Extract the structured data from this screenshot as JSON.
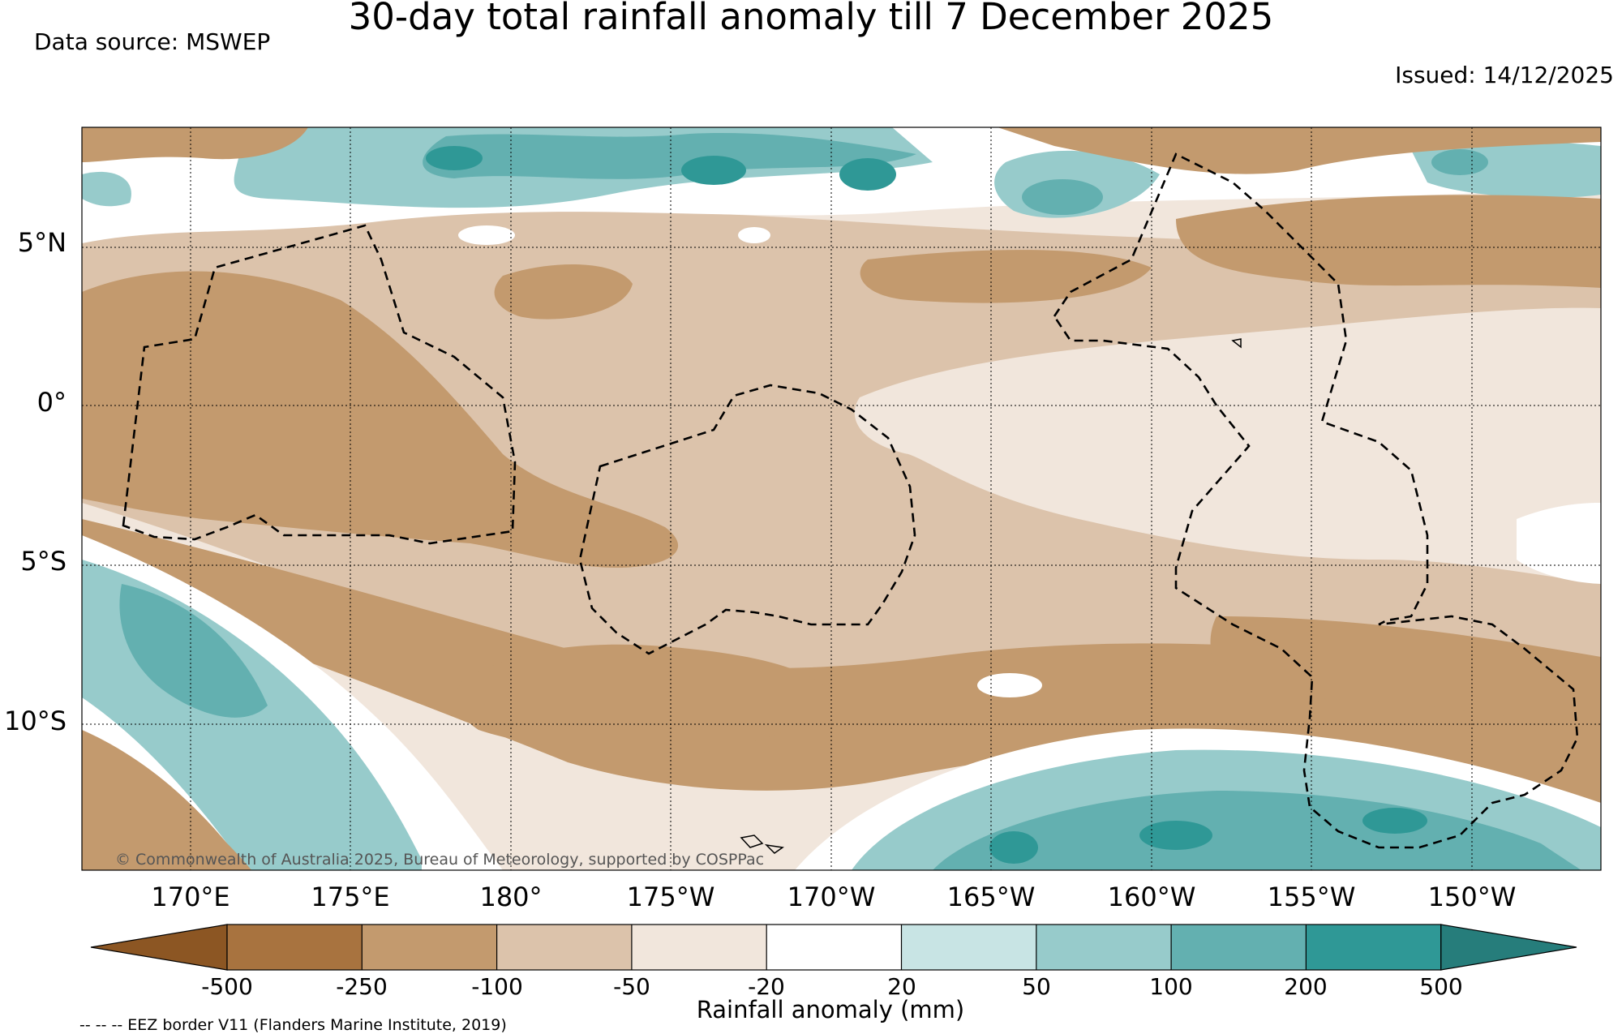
{
  "title": "30-day total rainfall anomaly till 7 December 2025",
  "data_source": "Data source: MSWEP",
  "issued": "Issued: 14/12/2025",
  "copyright": "© Commonwealth of Australia 2025, Bureau of Meteorology, supported by COSPPac",
  "eez_note": "-- -- -- EEZ border V11 (Flanders Marine Institute, 2019)",
  "map": {
    "lat_labels": [
      "5°N",
      "0°",
      "5°S",
      "10°S"
    ],
    "lon_labels": [
      "170°E",
      "175°E",
      "180°",
      "175°W",
      "170°W",
      "165°W",
      "160°W",
      "155°W",
      "150°W"
    ]
  },
  "colorbar": {
    "title": "Rainfall anomaly (mm)",
    "labels": [
      "-500",
      "-250",
      "-100",
      "-50",
      "-20",
      "20",
      "50",
      "100",
      "200",
      "500"
    ],
    "colors": {
      "lt_-500": "#8c5623",
      "-500_-250": "#a8733f",
      "-250_-100": "#c39a6e",
      "-100_-50": "#dcc3ab",
      "-50_-20": "#f1e6dc",
      "-20_20": "#ffffff",
      "20_50": "#c8e4e4",
      "50_100": "#97cbcb",
      "100_200": "#63b0b0",
      "200_500": "#2f9896",
      "gt_500": "#267d7b"
    }
  }
}
